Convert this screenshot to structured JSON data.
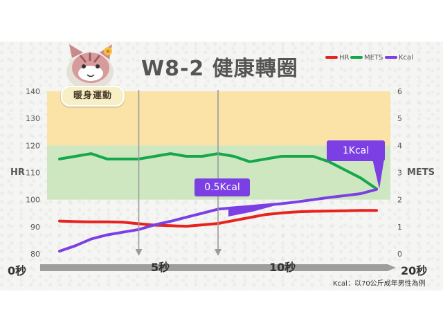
{
  "slide": {
    "title": "W8-2  健康轉圈",
    "mascot_label": "暖身運動",
    "footnote": "Kcal：以70公斤成年男性為例",
    "time_labels": [
      "0秒",
      "5秒",
      "10秒",
      "20秒"
    ],
    "callouts": {
      "kcal_half": "0.5Kcal",
      "kcal_one": "1Kcal"
    }
  },
  "chart_data": {
    "type": "line",
    "left_axis": {
      "name": "HR",
      "ylim": [
        80,
        140
      ],
      "ticks": [
        80,
        90,
        100,
        110,
        120,
        130,
        140
      ]
    },
    "right_axis": {
      "name": "METS",
      "ylim": [
        0,
        6
      ],
      "ticks": [
        0,
        1,
        2,
        3,
        4,
        5,
        6
      ]
    },
    "bands": [
      {
        "from": 120,
        "to": 140,
        "color": "#fbe3a8"
      },
      {
        "from": 100,
        "to": 120,
        "color": "#cfe7c1"
      }
    ],
    "x": [
      0,
      1,
      2,
      3,
      4,
      5,
      6,
      7,
      8,
      9,
      10,
      11,
      12,
      13,
      14,
      15,
      16,
      17,
      18,
      19,
      20
    ],
    "xlim": [
      0,
      20
    ],
    "guides": [
      5,
      10
    ],
    "legend": {
      "position": "top-right",
      "items": [
        "HR",
        "METS",
        "Kcal"
      ]
    },
    "series": [
      {
        "name": "HR",
        "axis": "left",
        "color": "#e8221e",
        "values": [
          92.1,
          91.9,
          91.8,
          91.8,
          91.7,
          91.1,
          90.6,
          90.4,
          90.2,
          90.7,
          91.2,
          92.3,
          93.4,
          94.5,
          95.1,
          95.5,
          95.7,
          95.8,
          95.9,
          96.0,
          96.0
        ]
      },
      {
        "name": "METS",
        "axis": "right",
        "color": "#14a84a",
        "values": [
          3.5,
          3.6,
          3.7,
          3.5,
          3.5,
          3.5,
          3.6,
          3.7,
          3.6,
          3.6,
          3.7,
          3.6,
          3.4,
          3.5,
          3.6,
          3.6,
          3.6,
          3.4,
          3.1,
          2.8,
          2.4
        ]
      },
      {
        "name": "Kcal",
        "axis": "left",
        "color": "#7b3fe4",
        "values": [
          81,
          83,
          85.5,
          87,
          88,
          89,
          90.7,
          92,
          93.5,
          95,
          96.5,
          97,
          97.5,
          98,
          98.5,
          99.2,
          100,
          100.8,
          101.5,
          102.2,
          103.8
        ]
      }
    ]
  }
}
